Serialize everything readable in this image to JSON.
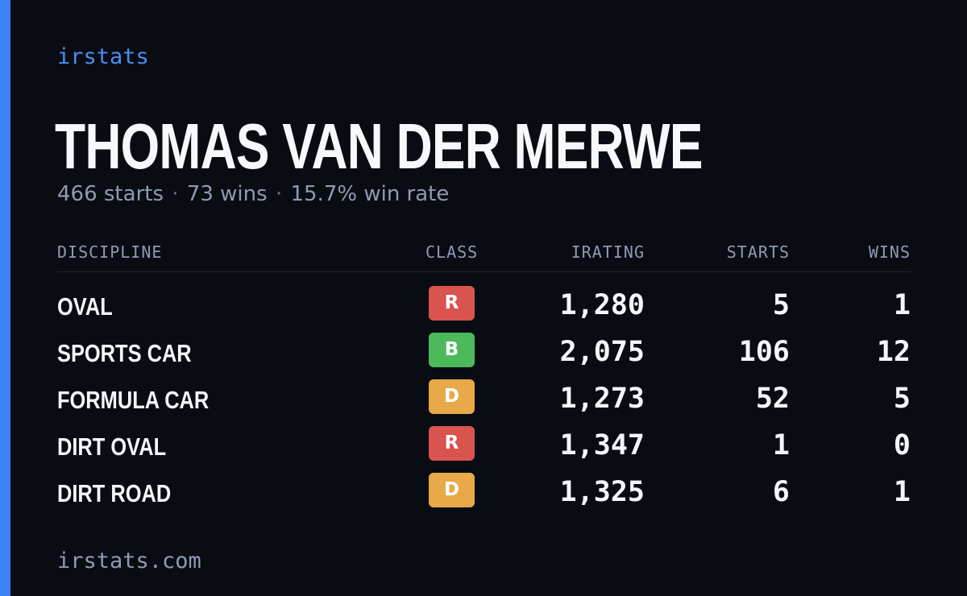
{
  "brand": "irstats",
  "driver": {
    "name": "THOMAS VAN DER MERWE",
    "starts_text": "466 starts",
    "wins_text": "73 wins",
    "winrate_text": "15.7% win rate",
    "separator": "·"
  },
  "table": {
    "headers": {
      "discipline": "DISCIPLINE",
      "class": "CLASS",
      "irating": "IRATING",
      "starts": "STARTS",
      "wins": "WINS"
    },
    "rows": [
      {
        "discipline": "OVAL",
        "class": "R",
        "irating": "1,280",
        "starts": "5",
        "wins": "1"
      },
      {
        "discipline": "SPORTS CAR",
        "class": "B",
        "irating": "2,075",
        "starts": "106",
        "wins": "12"
      },
      {
        "discipline": "FORMULA CAR",
        "class": "D",
        "irating": "1,273",
        "starts": "52",
        "wins": "5"
      },
      {
        "discipline": "DIRT OVAL",
        "class": "R",
        "irating": "1,347",
        "starts": "1",
        "wins": "0"
      },
      {
        "discipline": "DIRT ROAD",
        "class": "D",
        "irating": "1,325",
        "starts": "6",
        "wins": "1"
      }
    ]
  },
  "class_colors": {
    "R": "#d9534f",
    "B": "#4cba5a",
    "D": "#e8a948"
  },
  "accent_color": "#3b82f6",
  "footer": "irstats.com"
}
